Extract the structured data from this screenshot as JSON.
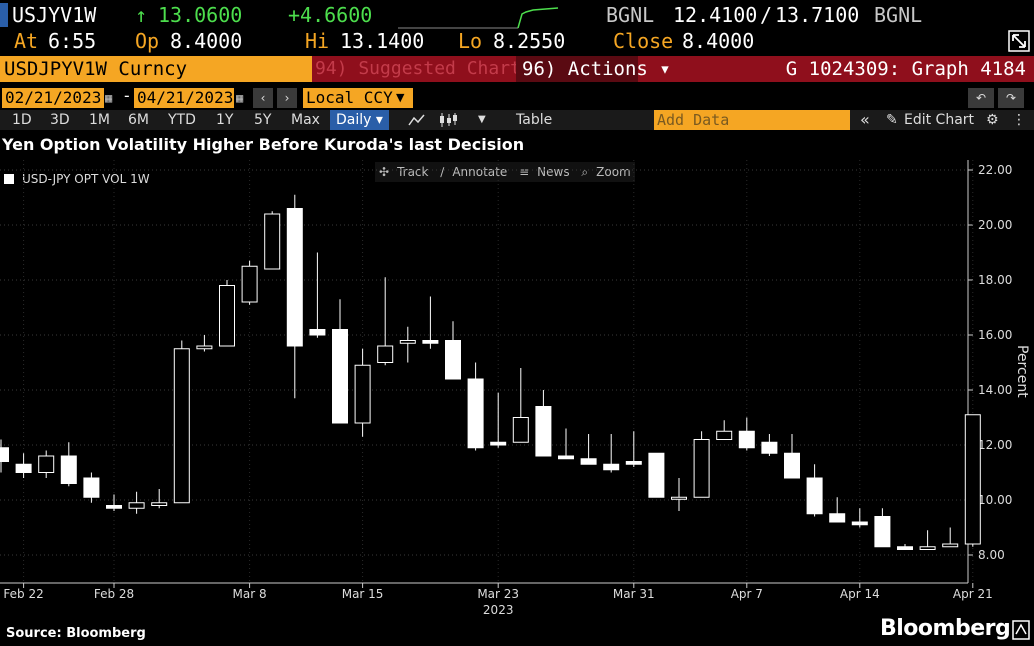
{
  "quote": {
    "ticker": "USJYV1W",
    "last_arrow": "↑",
    "last": "13.0600",
    "change": "+4.6600",
    "source1": "BGNL",
    "bid": "12.4100",
    "sep": "/",
    "ask": "13.7100",
    "source2": "BGNL",
    "at_label": "At",
    "at_time": "6:55",
    "op_label": "Op",
    "op": "8.4000",
    "hi_label": "Hi",
    "hi": "13.1400",
    "lo_label": "Lo",
    "lo": "8.2550",
    "close_label": "Close",
    "close": "8.4000"
  },
  "command_bar": {
    "security": "USDJPYV1W Curncy",
    "suggested": "94) Suggested Charts",
    "actions": "96) Actions ▾",
    "graph_id": "G 1024309: Graph 4184"
  },
  "date_range": {
    "start": "02/21/2023",
    "dash": "-",
    "end": "04/21/2023",
    "currency": "Local CCY"
  },
  "toolbar": {
    "periods": [
      "1D",
      "3D",
      "1M",
      "6M",
      "YTD",
      "1Y",
      "5Y",
      "Max"
    ],
    "frequency": "Daily ▾",
    "table": "Table",
    "add_data_placeholder": "Add Data",
    "edit_chart": "Edit Chart"
  },
  "chart_tools": [
    "Track",
    "Annotate",
    "News",
    "Zoom"
  ],
  "footer": {
    "source": "Source: Bloomberg",
    "brand": "Bloomberg"
  },
  "colors": {
    "amber": "#f5a623",
    "command_red": "#8f0f1c",
    "up_green": "#4dde4d",
    "candle": "#ffffff",
    "background": "#000000"
  },
  "chart_data": {
    "type": "candlestick",
    "title": "Yen Option Volatility Higher Before Kuroda's last Decision",
    "series_name": "USD-JPY OPT VOL 1W",
    "ylabel": "Percent",
    "ylim": [
      7.0,
      22.5
    ],
    "yticks": [
      8.0,
      10.0,
      12.0,
      14.0,
      16.0,
      18.0,
      20.0,
      22.0
    ],
    "x_tick_labels": [
      "Feb 22",
      "Feb 28",
      "Mar 8",
      "Mar 15",
      "Mar 23",
      "Mar 31",
      "Apr 7",
      "Apr 14",
      "Apr 21"
    ],
    "x_tick_index": [
      1,
      5,
      11,
      16,
      22,
      28,
      33,
      38,
      43
    ],
    "year_label": "2023",
    "year_index": 22,
    "legend_position": "top-left",
    "grid": true,
    "candles": [
      {
        "o": 11.9,
        "h": 12.2,
        "l": 11.0,
        "c": 11.4
      },
      {
        "o": 11.3,
        "h": 11.7,
        "l": 10.8,
        "c": 11.0
      },
      {
        "o": 11.0,
        "h": 11.8,
        "l": 10.8,
        "c": 11.6
      },
      {
        "o": 11.6,
        "h": 12.1,
        "l": 10.5,
        "c": 10.6
      },
      {
        "o": 10.8,
        "h": 11.0,
        "l": 9.9,
        "c": 10.1
      },
      {
        "o": 9.8,
        "h": 10.2,
        "l": 9.6,
        "c": 9.7
      },
      {
        "o": 9.7,
        "h": 10.3,
        "l": 9.5,
        "c": 9.9
      },
      {
        "o": 9.8,
        "h": 10.4,
        "l": 9.7,
        "c": 9.9
      },
      {
        "o": 9.9,
        "h": 15.8,
        "l": 9.9,
        "c": 15.5
      },
      {
        "o": 15.5,
        "h": 16.0,
        "l": 15.4,
        "c": 15.6
      },
      {
        "o": 15.6,
        "h": 18.0,
        "l": 15.6,
        "c": 17.8
      },
      {
        "o": 17.2,
        "h": 18.7,
        "l": 17.1,
        "c": 18.5
      },
      {
        "o": 18.4,
        "h": 20.5,
        "l": 18.4,
        "c": 20.4
      },
      {
        "o": 20.6,
        "h": 21.1,
        "l": 13.7,
        "c": 15.6
      },
      {
        "o": 16.2,
        "h": 19.0,
        "l": 15.9,
        "c": 16.0
      },
      {
        "o": 16.2,
        "h": 17.3,
        "l": 12.8,
        "c": 12.8
      },
      {
        "o": 12.8,
        "h": 15.5,
        "l": 12.3,
        "c": 14.9
      },
      {
        "o": 15.0,
        "h": 18.1,
        "l": 14.9,
        "c": 15.6
      },
      {
        "o": 15.7,
        "h": 16.3,
        "l": 15.0,
        "c": 15.8
      },
      {
        "o": 15.8,
        "h": 17.4,
        "l": 15.5,
        "c": 15.7
      },
      {
        "o": 15.8,
        "h": 16.5,
        "l": 14.5,
        "c": 14.4
      },
      {
        "o": 14.4,
        "h": 15.0,
        "l": 11.8,
        "c": 11.9
      },
      {
        "o": 12.1,
        "h": 13.9,
        "l": 11.9,
        "c": 12.0
      },
      {
        "o": 12.1,
        "h": 14.8,
        "l": 12.1,
        "c": 13.0
      },
      {
        "o": 13.4,
        "h": 14.0,
        "l": 11.6,
        "c": 11.6
      },
      {
        "o": 11.6,
        "h": 12.6,
        "l": 11.5,
        "c": 11.5
      },
      {
        "o": 11.5,
        "h": 12.4,
        "l": 11.3,
        "c": 11.3
      },
      {
        "o": 11.3,
        "h": 12.4,
        "l": 11.0,
        "c": 11.1
      },
      {
        "o": 11.4,
        "h": 12.5,
        "l": 11.2,
        "c": 11.3
      },
      {
        "o": 11.7,
        "h": 11.7,
        "l": 10.1,
        "c": 10.1
      },
      {
        "o": 10.1,
        "h": 10.8,
        "l": 9.6,
        "c": 10.1
      },
      {
        "o": 10.1,
        "h": 12.5,
        "l": 10.1,
        "c": 12.2
      },
      {
        "o": 12.2,
        "h": 12.9,
        "l": 12.2,
        "c": 12.5
      },
      {
        "o": 12.5,
        "h": 13.0,
        "l": 11.8,
        "c": 11.9
      },
      {
        "o": 12.1,
        "h": 12.4,
        "l": 11.6,
        "c": 11.7
      },
      {
        "o": 11.7,
        "h": 12.4,
        "l": 10.8,
        "c": 10.8
      },
      {
        "o": 10.8,
        "h": 11.3,
        "l": 9.4,
        "c": 9.5
      },
      {
        "o": 9.5,
        "h": 10.1,
        "l": 9.2,
        "c": 9.2
      },
      {
        "o": 9.2,
        "h": 9.7,
        "l": 9.0,
        "c": 9.1
      },
      {
        "o": 9.4,
        "h": 9.7,
        "l": 8.3,
        "c": 8.3
      },
      {
        "o": 8.3,
        "h": 8.4,
        "l": 8.2,
        "c": 8.2
      },
      {
        "o": 8.2,
        "h": 8.9,
        "l": 8.2,
        "c": 8.3
      },
      {
        "o": 8.3,
        "h": 9.0,
        "l": 8.3,
        "c": 8.4
      },
      {
        "o": 8.4,
        "h": 13.1,
        "l": 8.3,
        "c": 13.1
      }
    ]
  }
}
